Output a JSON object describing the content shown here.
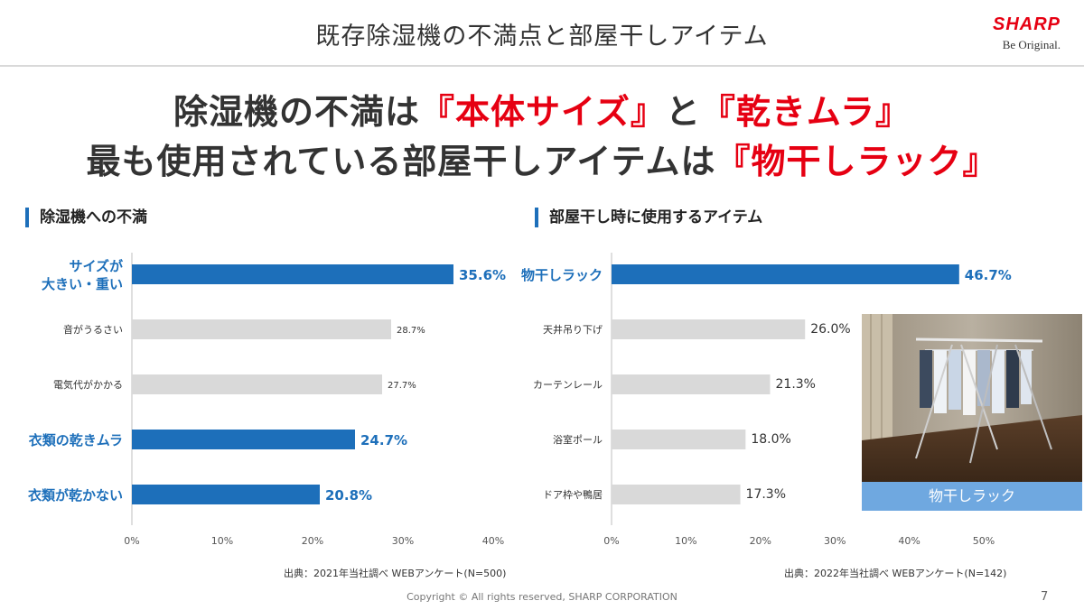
{
  "header": {
    "title": "既存除湿機の不満点と部屋干しアイテム",
    "logo_brand": "SHARP",
    "logo_tagline": "Be Original."
  },
  "headline": {
    "line1_a": "除湿機の不満は",
    "line1_b": "『本体サイズ』",
    "line1_c": "と",
    "line1_d": "『乾きムラ』",
    "line2_a": "最も使用されている部屋干しアイテムは",
    "line2_b": "『物干しラック』"
  },
  "colors": {
    "highlight_bar": "#1d6fba",
    "normal_bar": "#d9d9d9",
    "headline_red": "#e60012",
    "photo_caption_bg": "#6fa8e0"
  },
  "chart_data": [
    {
      "type": "bar",
      "orientation": "horizontal",
      "title": "除湿機への不満",
      "categories": [
        "サイズが\n大きい・重い",
        "音がうるさい",
        "電気代がかかる",
        "衣類の乾きムラ",
        "衣類が乾かない"
      ],
      "values": [
        35.6,
        28.7,
        27.7,
        24.7,
        20.8
      ],
      "value_labels": [
        "35.6%",
        "28.7%",
        "27.7%",
        "24.7%",
        "20.8%"
      ],
      "highlighted": [
        true,
        false,
        false,
        true,
        true
      ],
      "xlim": [
        0,
        40
      ],
      "xticks": [
        "0%",
        "10%",
        "20%",
        "30%",
        "40%"
      ],
      "source": "出典：2021年当社調べ WEBアンケート(N=500)"
    },
    {
      "type": "bar",
      "orientation": "horizontal",
      "title": "部屋干し時に使用するアイテム",
      "categories": [
        "物干しラック",
        "天井吊り下げ",
        "カーテンレール",
        "浴室ポール",
        "ドア枠や鴨居"
      ],
      "values": [
        46.7,
        26.0,
        21.3,
        18.0,
        17.3
      ],
      "value_labels": [
        "46.7%",
        "26.0%",
        "21.3%",
        "18.0%",
        "17.3%"
      ],
      "highlighted": [
        true,
        false,
        false,
        false,
        false
      ],
      "xlim": [
        0,
        50
      ],
      "xticks": [
        "0%",
        "10%",
        "20%",
        "30%",
        "40%",
        "50%"
      ],
      "source": "出典：2022年当社調べ WEBアンケート(N=142)"
    }
  ],
  "photo": {
    "caption": "物干しラック"
  },
  "footer": {
    "copyright": "Copyright © All rights reserved, SHARP CORPORATION",
    "page_number": "7"
  }
}
